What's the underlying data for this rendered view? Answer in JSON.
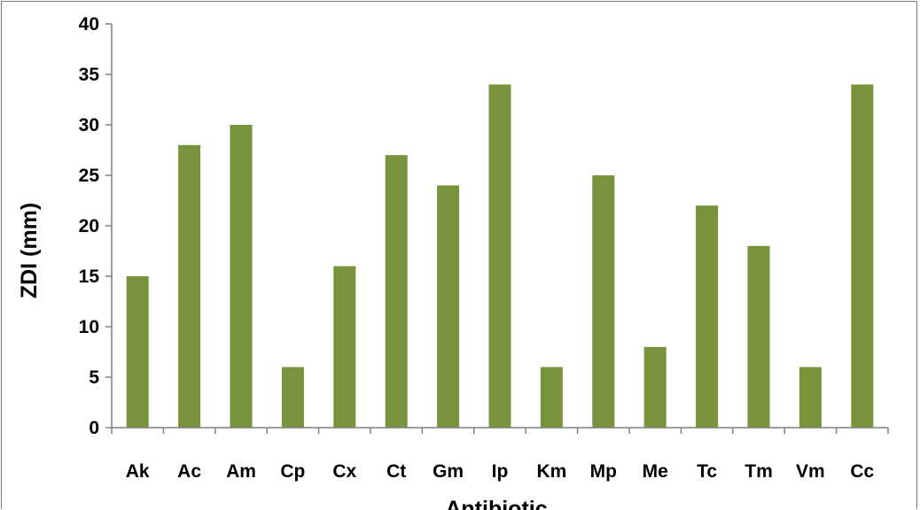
{
  "chart_data": {
    "type": "bar",
    "categories": [
      "Ak",
      "Ac",
      "Am",
      "Cp",
      "Cx",
      "Ct",
      "Gm",
      "Ip",
      "Km",
      "Mp",
      "Me",
      "Tc",
      "Tm",
      "Vm",
      "Cc"
    ],
    "values": [
      15,
      28,
      30,
      6,
      16,
      27,
      24,
      34,
      6,
      25,
      8,
      22,
      18,
      6,
      34
    ],
    "title": "",
    "xlabel": "Antibiotic",
    "ylabel": "ZDI (mm)",
    "ylim": [
      0,
      40
    ],
    "yticks": [
      0,
      5,
      10,
      15,
      20,
      25,
      30,
      35,
      40
    ],
    "grid": false,
    "legend": "none",
    "bar_color": "#77933c",
    "axis_color": "#7f7f7f"
  }
}
